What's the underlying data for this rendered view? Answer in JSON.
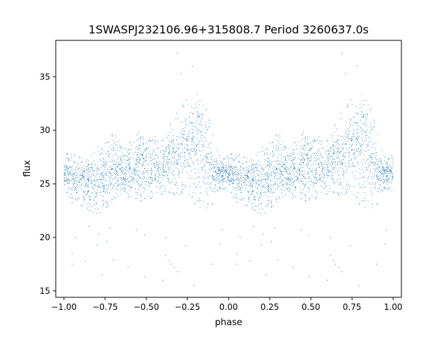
{
  "chart_data": {
    "type": "scatter",
    "title": "1SWASPJ232106.96+315808.7 Period 3260637.0s",
    "xlabel": "phase",
    "ylabel": "flux",
    "xlim": [
      -1.05,
      1.05
    ],
    "ylim": [
      14.4,
      38.4
    ],
    "xticks": [
      -1.0,
      -0.75,
      -0.5,
      -0.25,
      0.0,
      0.25,
      0.5,
      0.75,
      1.0
    ],
    "xtick_labels": [
      "−1.00",
      "−0.75",
      "−0.50",
      "−0.25",
      "0.00",
      "0.25",
      "0.50",
      "0.75",
      "1.00"
    ],
    "yticks": [
      15,
      20,
      25,
      30,
      35
    ],
    "ytick_labels": [
      "15",
      "20",
      "25",
      "30",
      "35"
    ],
    "grid": false,
    "marker_color": "#1f77b4",
    "series": [
      {
        "profile_phase": [
          -1.0,
          -0.95,
          -0.9,
          -0.85,
          -0.8,
          -0.75,
          -0.7,
          -0.65,
          -0.6,
          -0.55,
          -0.5,
          -0.45,
          -0.4,
          -0.35,
          -0.3,
          -0.25,
          -0.2,
          -0.15,
          -0.1,
          -0.05,
          0.0
        ],
        "profile_flux_low": [
          24.5,
          23.0,
          23.0,
          22.5,
          22.0,
          22.5,
          23.5,
          24.0,
          23.5,
          23.5,
          23.0,
          24.0,
          24.0,
          24.0,
          23.5,
          24.0,
          23.0,
          22.5,
          23.0,
          24.5,
          24.0
        ],
        "profile_flux_high": [
          28.0,
          27.8,
          27.5,
          27.3,
          28.5,
          28.8,
          29.8,
          29.0,
          29.0,
          30.0,
          30.0,
          29.5,
          29.0,
          31.0,
          32.0,
          33.0,
          33.5,
          33.5,
          30.0,
          27.5,
          28.0
        ],
        "profile_flux_center": [
          26.0,
          25.5,
          25.8,
          25.0,
          24.8,
          25.5,
          26.0,
          26.3,
          26.0,
          27.0,
          26.5,
          26.5,
          26.5,
          27.5,
          28.0,
          28.5,
          28.8,
          28.8,
          26.5,
          26.0,
          26.0
        ],
        "outliers": [
          [
            -0.95,
            18.5
          ],
          [
            -0.95,
            17.5
          ],
          [
            -0.93,
            20.0
          ],
          [
            -0.87,
            17.8
          ],
          [
            -0.85,
            21.0
          ],
          [
            -0.79,
            20.3
          ],
          [
            -0.8,
            19.3
          ],
          [
            -0.77,
            16.5
          ],
          [
            -0.74,
            19.6
          ],
          [
            -0.72,
            20.9
          ],
          [
            -0.7,
            17.9
          ],
          [
            -0.61,
            17.2
          ],
          [
            -0.56,
            20.7
          ],
          [
            -0.51,
            20.2
          ],
          [
            -0.51,
            16.3
          ],
          [
            -0.4,
            16.0
          ],
          [
            -0.38,
            20.0
          ],
          [
            -0.38,
            18.3
          ],
          [
            -0.36,
            17.8
          ],
          [
            -0.35,
            17.5
          ],
          [
            -0.33,
            17.2
          ],
          [
            -0.31,
            16.8
          ],
          [
            -0.31,
            37.2
          ],
          [
            -0.29,
            35.3
          ],
          [
            -0.26,
            19.2
          ],
          [
            -0.22,
            36.0
          ],
          [
            -0.21,
            15.5
          ],
          [
            -0.1,
            17.5
          ],
          [
            -0.04,
            20.7
          ],
          [
            -0.05,
            19.4
          ],
          [
            0.05,
            18.5
          ],
          [
            0.05,
            17.5
          ],
          [
            0.07,
            20.0
          ],
          [
            0.13,
            17.8
          ],
          [
            0.15,
            21.0
          ],
          [
            0.21,
            20.3
          ],
          [
            0.2,
            19.3
          ],
          [
            0.23,
            16.5
          ],
          [
            0.26,
            19.6
          ],
          [
            0.28,
            20.9
          ],
          [
            0.3,
            17.9
          ],
          [
            0.39,
            17.2
          ],
          [
            0.44,
            20.7
          ],
          [
            0.49,
            20.2
          ],
          [
            0.49,
            16.3
          ],
          [
            0.6,
            16.0
          ],
          [
            0.62,
            20.0
          ],
          [
            0.62,
            18.3
          ],
          [
            0.64,
            17.8
          ],
          [
            0.65,
            17.5
          ],
          [
            0.67,
            17.2
          ],
          [
            0.69,
            16.8
          ],
          [
            0.69,
            37.2
          ],
          [
            0.71,
            35.3
          ],
          [
            0.74,
            19.2
          ],
          [
            0.78,
            36.0
          ],
          [
            0.79,
            15.5
          ],
          [
            0.9,
            17.5
          ],
          [
            0.96,
            20.7
          ],
          [
            0.95,
            19.4
          ]
        ]
      }
    ]
  }
}
